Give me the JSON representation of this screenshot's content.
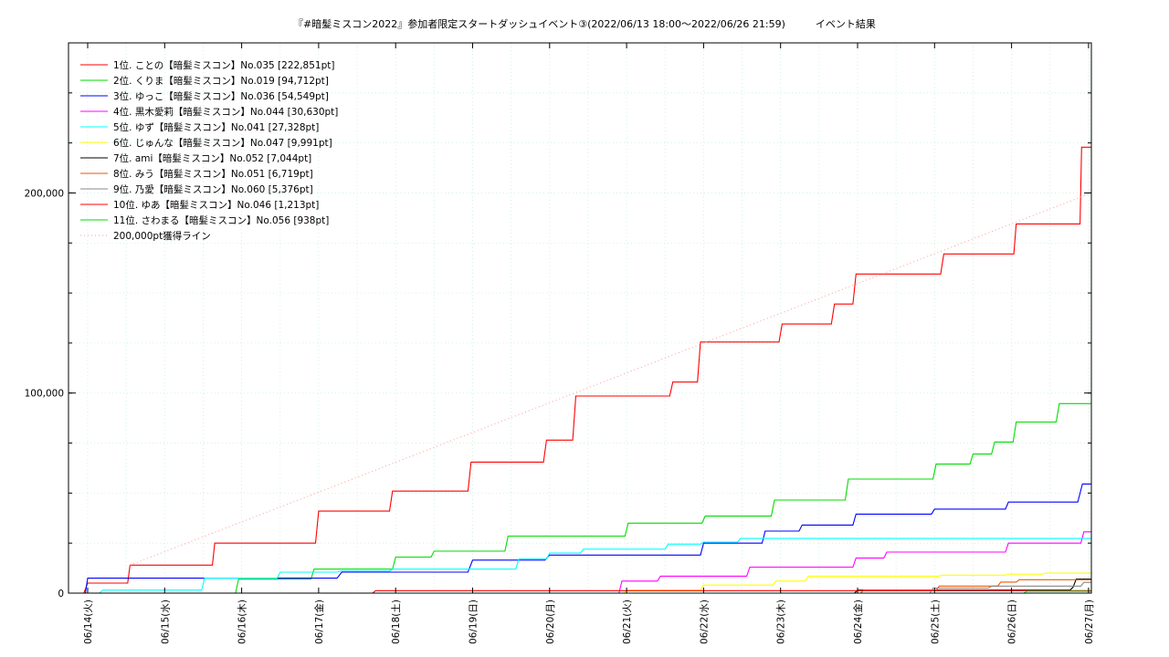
{
  "chart_data": {
    "type": "line",
    "title": "『#暗髪ミスコン2022』参加者限定スタートダッシュイベント③(2022/06/13 18:00〜2022/06/26 21:59)　　　イベント結果",
    "ylim": [
      0,
      275000
    ],
    "xlim": [
      0,
      13.2
    ],
    "grid": true,
    "legend_position": "top-left",
    "y_ticks": [
      {
        "value": 0,
        "label": "0"
      },
      {
        "value": 100000,
        "label": "100,000"
      },
      {
        "value": 200000,
        "label": "200,000"
      }
    ],
    "x_ticks": [
      {
        "value": 0,
        "label": "06/14(火)"
      },
      {
        "value": 1,
        "label": "06/15(水)"
      },
      {
        "value": 2,
        "label": "06/16(木)"
      },
      {
        "value": 3,
        "label": "06/17(金)"
      },
      {
        "value": 4,
        "label": "06/18(土)"
      },
      {
        "value": 5,
        "label": "06/19(日)"
      },
      {
        "value": 6,
        "label": "06/20(月)"
      },
      {
        "value": 7,
        "label": "06/21(火)"
      },
      {
        "value": 8,
        "label": "06/22(水)"
      },
      {
        "value": 9,
        "label": "06/23(木)"
      },
      {
        "value": 10,
        "label": "06/24(金)"
      },
      {
        "value": 11,
        "label": "06/25(土)"
      },
      {
        "value": 12,
        "label": "06/26(日)"
      },
      {
        "value": 13,
        "label": "06/27(月)"
      }
    ],
    "series": [
      {
        "name": "1位. ことの【暗髪ミスコン】No.035 [222,851pt]",
        "color": "#ff0000",
        "x": [
          -0.23,
          -0.05,
          0.0,
          0.52,
          0.55,
          1.62,
          1.65,
          2.96,
          3.0,
          3.92,
          3.96,
          4.94,
          4.98,
          5.92,
          5.96,
          6.3,
          6.34,
          7.56,
          7.6,
          7.92,
          7.96,
          8.98,
          9.02,
          9.66,
          9.7,
          9.94,
          9.98,
          11.08,
          11.12,
          12.03,
          12.06,
          12.89,
          12.91,
          13.2
        ],
        "y": [
          0,
          0,
          5000,
          5000,
          14000,
          14000,
          25000,
          25000,
          41000,
          41000,
          51000,
          51000,
          65500,
          65500,
          76500,
          76500,
          98500,
          98500,
          105500,
          105500,
          125500,
          125500,
          134500,
          134500,
          144500,
          144500,
          159500,
          159500,
          169500,
          169500,
          184500,
          184500,
          222851,
          222851
        ]
      },
      {
        "name": "2位. くりま【暗髪ミスコン】No.019 [94,712pt]",
        "color": "#00dd00",
        "x": [
          -0.23,
          1.92,
          1.96,
          2.9,
          2.94,
          3.96,
          4.0,
          4.46,
          4.5,
          5.42,
          5.46,
          6.98,
          7.02,
          7.98,
          8.02,
          8.88,
          8.92,
          9.84,
          9.88,
          10.98,
          11.02,
          11.46,
          11.5,
          11.74,
          11.78,
          12.02,
          12.06,
          12.58,
          12.62,
          13.2
        ],
        "y": [
          0,
          0,
          7000,
          7000,
          12000,
          12000,
          18000,
          18000,
          21000,
          21000,
          28500,
          28500,
          35000,
          35000,
          38500,
          38500,
          46500,
          46500,
          57000,
          57000,
          64500,
          64500,
          69500,
          69500,
          75500,
          75500,
          85500,
          85500,
          94712,
          94712
        ]
      },
      {
        "name": "3位. ゆっこ【暗髪ミスコン】No.036 [54,549pt]",
        "color": "#0000ff",
        "x": [
          -0.23,
          -0.03,
          0.0,
          3.24,
          3.3,
          4.94,
          5.0,
          5.94,
          6.0,
          7.96,
          8.0,
          8.76,
          8.8,
          9.24,
          9.28,
          9.94,
          9.98,
          10.96,
          11.0,
          11.92,
          11.96,
          12.86,
          12.92,
          13.2
        ],
        "y": [
          0,
          0,
          7500,
          7500,
          10500,
          10500,
          16500,
          16500,
          19000,
          19000,
          25000,
          25000,
          31000,
          31000,
          34000,
          34000,
          39500,
          39500,
          42000,
          42000,
          45500,
          45500,
          54549,
          54549
        ]
      },
      {
        "name": "4位. 黒木愛莉【暗髪ミスコン】No.044 [30,630pt]",
        "color": "#ff00ff",
        "x": [
          -0.23,
          6.9,
          6.94,
          7.4,
          7.44,
          8.56,
          8.6,
          9.94,
          9.98,
          10.34,
          10.38,
          11.92,
          11.96,
          12.9,
          12.94,
          13.2
        ],
        "y": [
          0,
          0,
          6000,
          6000,
          8500,
          8500,
          13000,
          13000,
          17500,
          17500,
          20500,
          20500,
          25000,
          25000,
          30630,
          30630
        ]
      },
      {
        "name": "5位. ゆず【暗髪ミスコン】No.041 [27,328pt]",
        "color": "#00ffff",
        "x": [
          -0.23,
          0.15,
          0.2,
          1.48,
          1.52,
          2.46,
          2.5,
          3.24,
          3.28,
          3.92,
          3.96,
          5.56,
          5.6,
          5.96,
          6.0,
          6.4,
          6.44,
          7.5,
          7.54,
          7.96,
          8.0,
          8.44,
          8.48,
          13.2
        ],
        "y": [
          0,
          0,
          1500,
          1500,
          7500,
          7500,
          10500,
          10500,
          11000,
          11000,
          12000,
          12000,
          17000,
          17000,
          20000,
          20000,
          22000,
          22000,
          24500,
          24500,
          25500,
          25500,
          27328,
          27328
        ]
      },
      {
        "name": "6位. じゅんな【暗髪ミスコン】No.047 [9,991pt]",
        "color": "#ffff00",
        "x": [
          -0.23,
          6.96,
          7.0,
          7.96,
          8.0,
          8.9,
          8.94,
          9.32,
          9.36,
          11.06,
          11.1,
          11.92,
          11.96,
          12.4,
          12.44,
          13.2
        ],
        "y": [
          0,
          0,
          1500,
          1500,
          4000,
          4000,
          6000,
          6000,
          8500,
          8500,
          9000,
          9000,
          9500,
          9500,
          9991,
          9991
        ]
      },
      {
        "name": "7位. ami【暗髪ミスコン】No.052 [7,044pt]",
        "color": "#000000",
        "x": [
          -0.23,
          9.96,
          10.0,
          12.76,
          12.8,
          12.84,
          13.2
        ],
        "y": [
          0,
          0,
          1500,
          1500,
          3000,
          7044,
          7044
        ]
      },
      {
        "name": "8位. みう【暗髪ミスコン】No.051 [6,719pt]",
        "color": "#ee5500",
        "x": [
          -0.23,
          10.04,
          10.08,
          11.02,
          11.06,
          11.82,
          11.86,
          12.06,
          12.1,
          13.2
        ],
        "y": [
          0,
          0,
          1500,
          1500,
          3500,
          3500,
          5500,
          5500,
          6719,
          6719
        ]
      },
      {
        "name": "9位. 乃愛【暗髪ミスコン】No.060 [5,376pt]",
        "color": "#888888",
        "x": [
          -0.23,
          10.94,
          10.98,
          11.7,
          11.74,
          12.9,
          12.94,
          13.2
        ],
        "y": [
          0,
          0,
          2500,
          2500,
          3500,
          3500,
          5376,
          5376
        ]
      },
      {
        "name": "10位. ゆあ【暗髪ミスコン】No.046 [1,213pt]",
        "color": "#ff0000",
        "x": [
          -0.23,
          3.7,
          3.74,
          13.2
        ],
        "y": [
          0,
          0,
          1213,
          1213
        ]
      },
      {
        "name": "11位. さわまる【暗髪ミスコン】No.056 [938pt]",
        "color": "#00dd00",
        "x": [
          -0.23,
          12.16,
          12.2,
          13.2
        ],
        "y": [
          0,
          0,
          938,
          938
        ]
      },
      {
        "name": "200,000pt獲得ライン",
        "color": "#ff9999",
        "dashed": true,
        "x": [
          0.55,
          13.2
        ],
        "y": [
          14000,
          200000
        ]
      }
    ]
  }
}
